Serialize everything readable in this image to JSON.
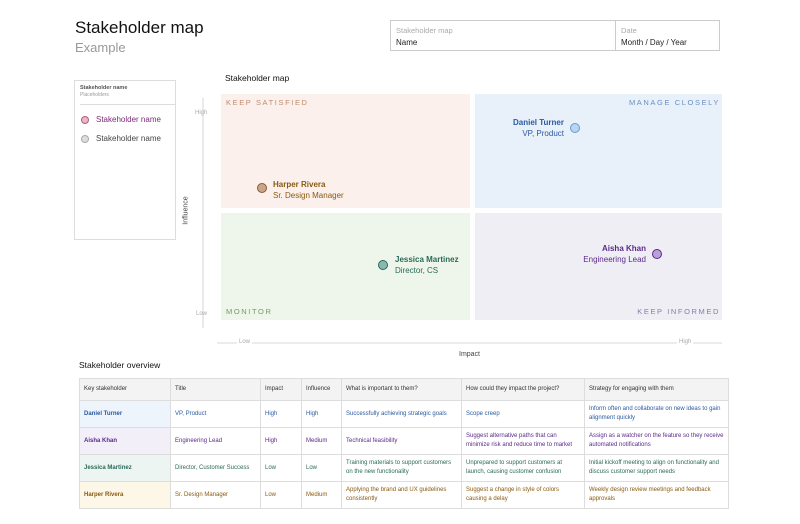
{
  "header": {
    "title": "Stakeholder map",
    "subtitle": "Example"
  },
  "info": [
    {
      "label": "Stakeholder map",
      "value": "Name"
    },
    {
      "label": "Date",
      "value": "Month / Day / Year"
    }
  ],
  "legend": {
    "title": "Stakeholder name",
    "subtitle": "Placeholders",
    "items": [
      "Stakeholder name",
      "Stakeholder name"
    ]
  },
  "map": {
    "title": "Stakeholder map",
    "quadrants": [
      "KEEP SATISFIED",
      "MANAGE CLOSELY",
      "MONITOR",
      "KEEP INFORMED"
    ],
    "axes": {
      "y_label": "Influence",
      "y_high": "High",
      "y_low": "Low",
      "x_label": "Impact",
      "x_low": "Low",
      "x_high": "High"
    },
    "stakeholders": [
      {
        "name": "Harper Rivera",
        "role": "Sr. Design Manager"
      },
      {
        "name": "Daniel Turner",
        "role": "VP, Product"
      },
      {
        "name": "Jessica Martinez",
        "role": "Director, CS"
      },
      {
        "name": "Aisha Khan",
        "role": "Engineering Lead"
      }
    ]
  },
  "table": {
    "title": "Stakeholder overview",
    "columns": [
      "Key stakeholder",
      "Title",
      "Impact",
      "Influence",
      "What is important to them?",
      "How could they impact the project?",
      "Strategy for engaging with them"
    ],
    "rows": [
      [
        "Daniel Turner",
        "VP, Product",
        "High",
        "High",
        "Successfully achieving strategic goals",
        "Scope creep",
        "Inform often and collaborate on new ideas to gain alignment quickly"
      ],
      [
        "Aisha Khan",
        "Engineering Lead",
        "High",
        "Medium",
        "Technical feasibility",
        "Suggest alternative paths that can minimize risk and reduce time to market",
        "Assign as a watcher on the feature so they receive automated notifications"
      ],
      [
        "Jessica Martinez",
        "Director, Customer Success",
        "Low",
        "Low",
        "Training materials to support customers on the new functionality",
        "Unprepared to support customers at launch, causing customer confusion",
        "Initial kickoff meeting to align on functionality and discuss customer support needs"
      ],
      [
        "Harper Rivera",
        "Sr. Design Manager",
        "Low",
        "Medium",
        "Applying the brand and UX guidelines consistently",
        "Suggest a change in style of colors causing a delay",
        "Weekly design review meetings and feedback approvals"
      ]
    ]
  }
}
